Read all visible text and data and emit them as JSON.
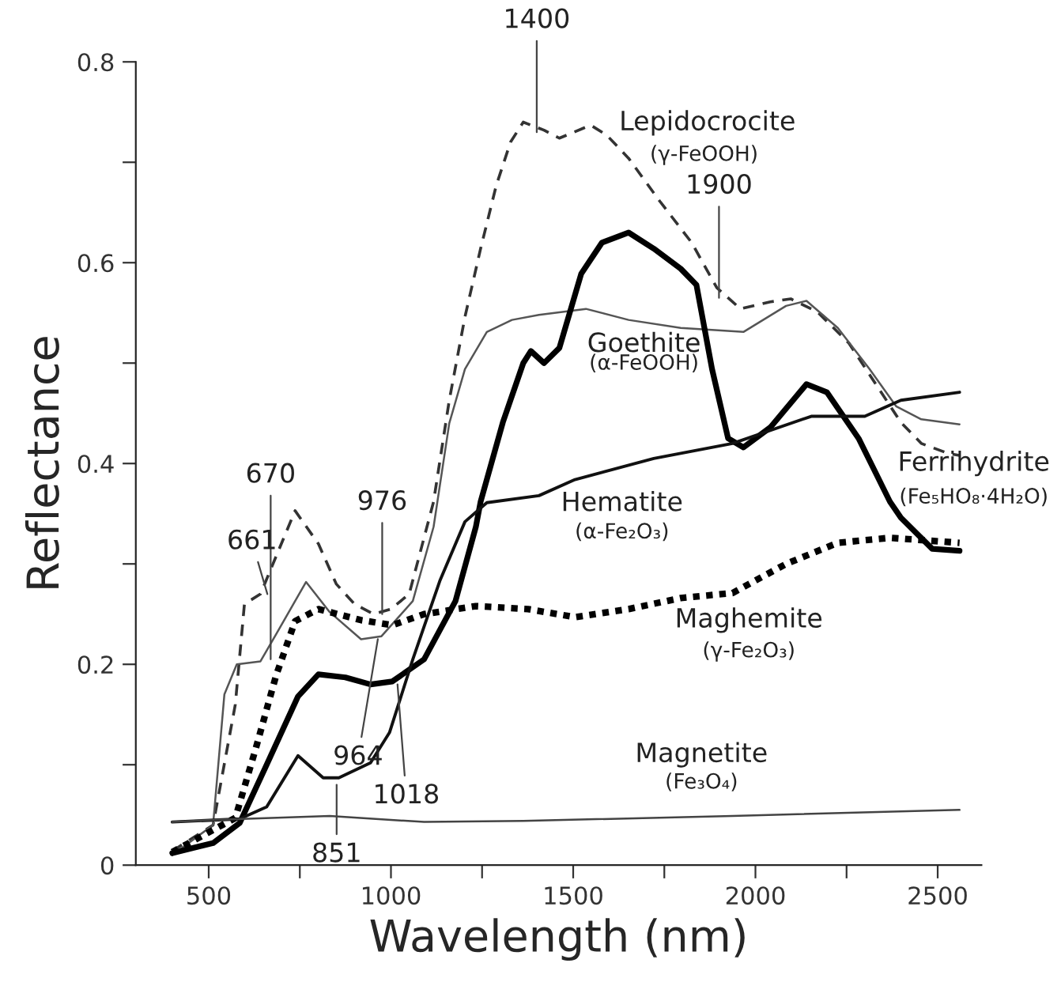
{
  "chart_data": {
    "type": "line",
    "xlabel": "Wavelength (nm)",
    "ylabel": "Reflectance",
    "xlim": [
      300,
      2620
    ],
    "ylim": [
      0,
      0.8
    ],
    "xticks": [
      500,
      {
        "value": 750,
        "label": null
      },
      1000,
      {
        "value": 1250,
        "label": null
      },
      1500,
      {
        "value": 1750,
        "label": null
      },
      2000,
      {
        "value": 2250,
        "label": null
      },
      2500
    ],
    "yticks": [
      0,
      {
        "value": 0.1,
        "label": null
      },
      0.2,
      {
        "value": 0.3,
        "label": null
      },
      0.4,
      {
        "value": 0.5,
        "label": null
      },
      0.6,
      {
        "value": 0.7,
        "label": null
      },
      0.8
    ],
    "grid": false,
    "legend": false,
    "series": [
      {
        "color": "#333333",
        "line_style": "dashed",
        "x": [
          400,
          512,
          573,
          598,
          642,
          737,
          801,
          850,
          900,
          952,
          1000,
          1050,
          1117,
          1160,
          1203,
          1246,
          1289,
          1328,
          1363,
          1420,
          1462,
          1548,
          1592,
          1652,
          1738,
          1825,
          1894,
          1959,
          2041,
          2097,
          2170,
          2256,
          2343,
          2399,
          2455,
          2529,
          2560
        ],
        "values": [
          0.014,
          0.04,
          0.16,
          0.26,
          0.27,
          0.353,
          0.32,
          0.28,
          0.26,
          0.25,
          0.255,
          0.27,
          0.362,
          0.463,
          0.546,
          0.614,
          0.677,
          0.72,
          0.74,
          0.732,
          0.724,
          0.737,
          0.727,
          0.704,
          0.661,
          0.62,
          0.575,
          0.554,
          0.561,
          0.564,
          0.551,
          0.52,
          0.472,
          0.441,
          0.42,
          0.41,
          0.408
        ]
      },
      {
        "color": "#555555",
        "line_style": "solid",
        "x": [
          400,
          512,
          543,
          577,
          642,
          685,
          767,
          832,
          918,
          974,
          1060,
          1117,
          1160,
          1203,
          1263,
          1332,
          1406,
          1535,
          1652,
          1795,
          1967,
          2084,
          2140,
          2226,
          2313,
          2386,
          2455,
          2560
        ],
        "values": [
          0.01,
          0.04,
          0.17,
          0.2,
          0.203,
          0.23,
          0.282,
          0.252,
          0.225,
          0.228,
          0.263,
          0.337,
          0.44,
          0.494,
          0.531,
          0.543,
          0.548,
          0.554,
          0.543,
          0.535,
          0.531,
          0.557,
          0.562,
          0.535,
          0.494,
          0.457,
          0.444,
          0.439
        ]
      },
      {
        "color": "#000000",
        "line_style": "solid",
        "x": [
          400,
          512,
          585,
          659,
          745,
          801,
          875,
          944,
          1004,
          1091,
          1177,
          1233,
          1246,
          1307,
          1363,
          1384,
          1420,
          1462,
          1522,
          1579,
          1652,
          1721,
          1795,
          1838,
          1881,
          1925,
          1967,
          2041,
          2140,
          2196,
          2283,
          2369,
          2399,
          2485,
          2560
        ],
        "values": [
          0.012,
          0.022,
          0.042,
          0.1,
          0.168,
          0.19,
          0.187,
          0.18,
          0.183,
          0.205,
          0.263,
          0.337,
          0.362,
          0.441,
          0.5,
          0.512,
          0.5,
          0.515,
          0.589,
          0.62,
          0.63,
          0.614,
          0.594,
          0.578,
          0.494,
          0.425,
          0.416,
          0.436,
          0.479,
          0.471,
          0.425,
          0.362,
          0.346,
          0.315,
          0.313
        ]
      },
      {
        "color": "#111111",
        "line_style": "solid",
        "x": [
          400,
          585,
          659,
          745,
          814,
          857,
          944,
          996,
          1060,
          1134,
          1203,
          1263,
          1406,
          1505,
          1721,
          1937,
          2153,
          2300,
          2399,
          2560
        ],
        "values": [
          0.043,
          0.046,
          0.058,
          0.109,
          0.087,
          0.087,
          0.102,
          0.132,
          0.205,
          0.283,
          0.342,
          0.361,
          0.368,
          0.384,
          0.405,
          0.42,
          0.447,
          0.447,
          0.463,
          0.471
        ]
      },
      {
        "color": "#000000",
        "line_style": "dashed",
        "x": [
          400,
          573,
          629,
          685,
          737,
          801,
          918,
          1004,
          1091,
          1233,
          1376,
          1505,
          1652,
          1795,
          1937,
          2084,
          2226,
          2369,
          2560
        ],
        "values": [
          0.013,
          0.047,
          0.116,
          0.189,
          0.243,
          0.255,
          0.244,
          0.239,
          0.25,
          0.258,
          0.255,
          0.247,
          0.255,
          0.266,
          0.271,
          0.3,
          0.321,
          0.326,
          0.321
        ]
      },
      {
        "color": "#444444",
        "line_style": "solid",
        "x": [
          400,
          512,
          832,
          1091,
          1363,
          1937,
          2560
        ],
        "values": [
          0.043,
          0.045,
          0.049,
          0.043,
          0.044,
          0.049,
          0.055
        ]
      }
    ],
    "annotations": [
      {
        "text": "1400",
        "x": 1400,
        "y": 0.73
      },
      {
        "text": "1900",
        "x": 1900,
        "y": 0.565
      },
      {
        "text": "670",
        "x": 670,
        "y": 0.205
      },
      {
        "text": "661",
        "x": 661,
        "y": 0.27
      },
      {
        "text": "976",
        "x": 976,
        "y": 0.25
      },
      {
        "text": "964",
        "x": 964,
        "y": 0.225
      },
      {
        "text": "1018",
        "x": 1018,
        "y": 0.18
      },
      {
        "text": "851",
        "x": 851,
        "y": 0.08
      },
      "Lepidocrocite",
      "(γ-FeOOH)",
      "Goethite",
      "(α-FeOOH)",
      "Hematite",
      "(α-Fe₂O₃)",
      "Maghemite",
      "(γ-Fe₂O₃)",
      "Magnetite",
      "(Fe₃O₄)",
      "Ferrihydrite",
      "(Fe₅HO₈·4H₂O)"
    ]
  }
}
